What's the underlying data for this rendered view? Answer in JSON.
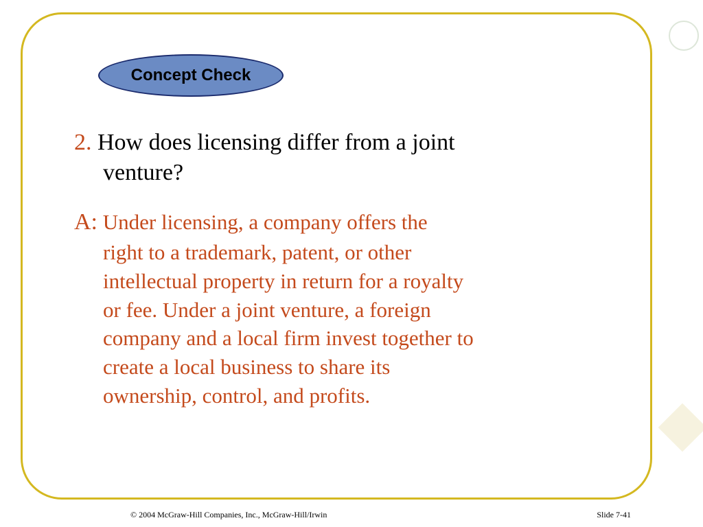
{
  "title": "Concept Check",
  "question": {
    "number": "2.",
    "line1": " How does licensing differ from a joint",
    "line2": "venture?"
  },
  "answer": {
    "label": "A:",
    "line1": " Under licensing, a company offers the",
    "line2": "right to a trademark, patent, or other",
    "line3": "intellectual property in return for a royalty",
    "line4": "or fee.  Under a joint venture, a foreign",
    "line5": "company and a local firm invest together to",
    "line6": "create a local business to share its",
    "line7": "ownership, control, and profits."
  },
  "footer": {
    "copyright": "© 2004 McGraw-Hill Companies, Inc., McGraw-Hill/Irwin",
    "slide": "Slide 7-41"
  },
  "colors": {
    "frame_border": "#d4b820",
    "ellipse_fill": "#6b8bc4",
    "ellipse_border": "#1a2a6c",
    "accent_text": "#c44a1c",
    "body_text": "#000000"
  }
}
